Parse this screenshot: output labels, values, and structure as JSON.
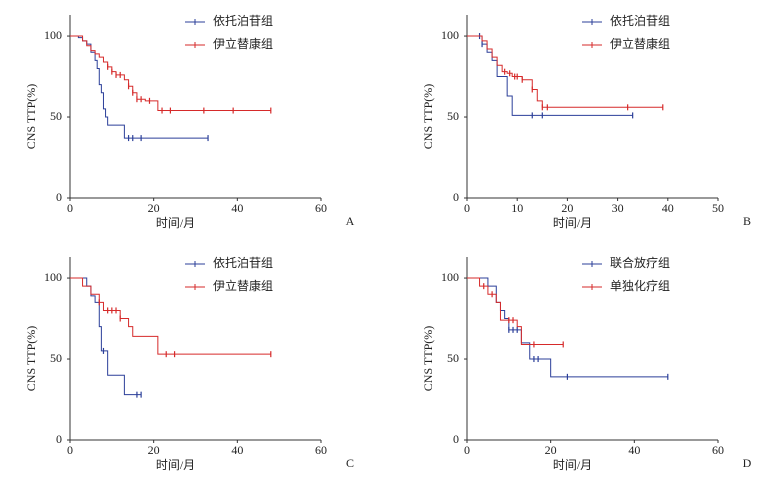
{
  "chart_data": [
    {
      "type": "step",
      "panel": "A",
      "xlabel": "时间/月",
      "ylabel": "CNS TTP(%)",
      "xlim": [
        0,
        60
      ],
      "ylim": [
        0,
        113
      ],
      "xticks": [
        0,
        20,
        40,
        60
      ],
      "yticks": [
        0,
        50,
        100
      ],
      "series": [
        {
          "name": "依托泊苷组",
          "color": "#2b3f99",
          "x": [
            0,
            2,
            3,
            4,
            5,
            6,
            6.5,
            7,
            7.5,
            8,
            8.5,
            9,
            13,
            33
          ],
          "values": [
            100,
            99,
            97,
            95,
            90,
            85,
            80,
            70,
            65,
            55,
            50,
            45,
            37,
            37
          ],
          "censored": [
            14,
            15,
            17,
            33
          ]
        },
        {
          "name": "伊立替康组",
          "color": "#d62a2a",
          "x": [
            0,
            3,
            4,
            5,
            6,
            7,
            8,
            9,
            10,
            11,
            13,
            14,
            15,
            16,
            18,
            21,
            48
          ],
          "values": [
            100,
            97,
            94,
            91,
            89,
            87,
            84,
            81,
            78,
            76,
            73,
            69,
            65,
            61,
            60,
            54,
            54
          ],
          "censored": [
            9,
            10,
            11,
            12,
            14,
            15,
            16,
            17,
            19,
            22,
            24,
            32,
            39,
            48
          ]
        }
      ]
    },
    {
      "type": "step",
      "panel": "B",
      "xlabel": "时间/月",
      "ylabel": "CNS TTP(%)",
      "xlim": [
        0,
        50
      ],
      "ylim": [
        0,
        113
      ],
      "xticks": [
        0,
        10,
        20,
        30,
        40,
        50
      ],
      "yticks": [
        0,
        50,
        100
      ],
      "series": [
        {
          "name": "依托泊苷组",
          "color": "#2b3f99",
          "x": [
            0,
            3,
            4,
            5,
            6,
            8,
            9,
            33
          ],
          "values": [
            100,
            95,
            90,
            85,
            75,
            63,
            51,
            51
          ],
          "censored": [
            2.5,
            3,
            13,
            15,
            33
          ]
        },
        {
          "name": "伊立替康组",
          "color": "#d62a2a",
          "x": [
            0,
            3,
            4,
            5,
            6,
            7,
            8,
            9,
            11,
            13,
            14,
            15,
            39
          ],
          "values": [
            100,
            97,
            92,
            87,
            82,
            78,
            77,
            75,
            73,
            67,
            60,
            56,
            56
          ],
          "censored": [
            7.5,
            8.5,
            9.5,
            10,
            11,
            13,
            15,
            16,
            32,
            39
          ]
        }
      ]
    },
    {
      "type": "step",
      "panel": "C",
      "xlabel": "时间/月",
      "ylabel": "CNS TTP(%)",
      "xlim": [
        0,
        60
      ],
      "ylim": [
        0,
        113
      ],
      "xticks": [
        0,
        20,
        40,
        60
      ],
      "yticks": [
        0,
        50,
        100
      ],
      "series": [
        {
          "name": "依托泊苷组",
          "color": "#2b3f99",
          "x": [
            0,
            4,
            5,
            6,
            7,
            7.5,
            9,
            13,
            17
          ],
          "values": [
            100,
            95,
            89,
            85,
            70,
            55,
            40,
            28,
            28
          ],
          "censored": [
            8,
            16,
            17
          ]
        },
        {
          "name": "伊立替康组",
          "color": "#d62a2a",
          "x": [
            0,
            3,
            5,
            7,
            8,
            12,
            14,
            15,
            21,
            48
          ],
          "values": [
            100,
            95,
            90,
            85,
            80,
            75,
            70,
            64,
            53,
            53
          ],
          "censored": [
            7,
            9,
            10,
            11,
            12,
            23,
            25,
            48
          ]
        }
      ]
    },
    {
      "type": "step",
      "panel": "D",
      "xlabel": "时间/月",
      "ylabel": "CNS TTP(%)",
      "xlim": [
        0,
        60
      ],
      "ylim": [
        0,
        113
      ],
      "xticks": [
        0,
        20,
        40,
        60
      ],
      "yticks": [
        0,
        50,
        100
      ],
      "series": [
        {
          "name": "联合放疗组",
          "color": "#2b3f99",
          "x": [
            0,
            5,
            7,
            8,
            9,
            10,
            13,
            15,
            20,
            48
          ],
          "values": [
            100,
            95,
            85,
            80,
            75,
            68,
            60,
            50,
            39,
            39
          ],
          "censored": [
            10,
            11,
            12,
            16,
            17,
            24,
            48
          ]
        },
        {
          "name": "单独化疗组",
          "color": "#d62a2a",
          "x": [
            0,
            3,
            5,
            7,
            8,
            12,
            13,
            23
          ],
          "values": [
            100,
            95,
            90,
            85,
            74,
            70,
            59,
            59
          ],
          "censored": [
            4,
            6,
            10,
            11,
            16,
            23
          ]
        }
      ]
    }
  ]
}
